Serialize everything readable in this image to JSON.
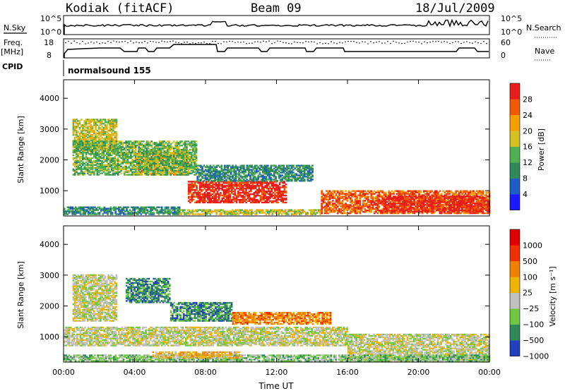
{
  "header": {
    "site": "Kodiak (fitACF)",
    "beam": "Beam 09",
    "date": "18/Jul/2009"
  },
  "summary": {
    "nsky_label": "N.Sky",
    "nsky_ticks": [
      "10^5",
      "10^0"
    ],
    "nsearch_label": "N.Search",
    "nsearch_ticks": [
      "10^5",
      "10^0"
    ],
    "freq_label_line1": "Freq.",
    "freq_label_line2": "[MHz]",
    "freq_ticks": [
      "18",
      "8"
    ],
    "nave_label": "Nave",
    "nave_ticks": [
      "60",
      "0"
    ],
    "cpid_label": "CPID",
    "cpid_value": "normalsound 155"
  },
  "chart_data": [
    {
      "type": "heatmap",
      "title": "",
      "xlabel": "Time UT",
      "ylabel": "Slant Range [km]",
      "xlim": [
        0,
        24
      ],
      "ylim": [
        180,
        4600
      ],
      "x_ticks": [
        "00:00",
        "04:00",
        "08:00",
        "12:00",
        "16:00",
        "20:00",
        "00:00"
      ],
      "y_ticks": [
        "1000",
        "2000",
        "3000",
        "4000"
      ],
      "colorbar_label": "Power [dB]",
      "colorbar_ticks": [
        "4",
        "8",
        "12",
        "16",
        "20",
        "24",
        "28"
      ],
      "colorbar_range": [
        0,
        32
      ],
      "colors": [
        "#1a1aff",
        "#1e5cc8",
        "#2e8b57",
        "#4caf50",
        "#d4c020",
        "#f5a000",
        "#f05a00",
        "#e61e1e"
      ],
      "regions": [
        {
          "t0": 0.0,
          "t1": 6.5,
          "r0": 220,
          "r1": 480,
          "level": 2
        },
        {
          "t0": 6.5,
          "t1": 14.5,
          "r0": 220,
          "r1": 400,
          "level": 4
        },
        {
          "t0": 14.5,
          "t1": 24.0,
          "r0": 250,
          "r1": 1000,
          "level": 6
        },
        {
          "t0": 18.0,
          "t1": 24.0,
          "r0": 300,
          "r1": 800,
          "level": 7
        },
        {
          "t0": 7.0,
          "t1": 12.5,
          "r0": 600,
          "r1": 1300,
          "level": 7
        },
        {
          "t0": 4.0,
          "t1": 7.0,
          "r0": 1500,
          "r1": 2300,
          "level": 5
        },
        {
          "t0": 0.5,
          "t1": 3.0,
          "r0": 2300,
          "r1": 3300,
          "level": 4
        },
        {
          "t0": 7.5,
          "t1": 14.0,
          "r0": 1300,
          "r1": 1800,
          "level": 2
        },
        {
          "t0": 0.5,
          "t1": 7.5,
          "r0": 1500,
          "r1": 2600,
          "level": 3
        }
      ]
    },
    {
      "type": "heatmap",
      "title": "",
      "xlabel": "Time UT",
      "ylabel": "Slant Range [km]",
      "xlim": [
        0,
        24
      ],
      "ylim": [
        180,
        4600
      ],
      "x_ticks": [
        "00:00",
        "04:00",
        "08:00",
        "12:00",
        "16:00",
        "20:00",
        "00:00"
      ],
      "y_ticks": [
        "1000",
        "2000",
        "3000",
        "4000"
      ],
      "colorbar_label": "Velocity [m s⁻¹]",
      "colorbar_ticks": [
        "1000",
        "500",
        "100",
        "25",
        "−25",
        "−100",
        "−500",
        "−1000"
      ],
      "colorbar_range": [
        -1000,
        1000
      ],
      "colors": [
        "#2040c0",
        "#2e8b57",
        "#70c840",
        "#c0c0c0",
        "#f0b400",
        "#f08000",
        "#f03000",
        "#e00000"
      ],
      "regions": [
        {
          "t0": 0.0,
          "t1": 16.0,
          "r0": 700,
          "r1": 1300,
          "level": 3
        },
        {
          "t0": 16.0,
          "t1": 24.0,
          "r0": 200,
          "r1": 1100,
          "level": 3
        },
        {
          "t0": 0.0,
          "t1": 24.0,
          "r0": 200,
          "r1": 420,
          "level": 2
        },
        {
          "t0": 6.0,
          "t1": 9.5,
          "r0": 1500,
          "r1": 2100,
          "level": 1
        },
        {
          "t0": 3.5,
          "t1": 6.0,
          "r0": 2100,
          "r1": 2900,
          "level": 1
        },
        {
          "t0": 9.5,
          "t1": 15.0,
          "r0": 1400,
          "r1": 1800,
          "level": 5
        },
        {
          "t0": 0.5,
          "t1": 3.0,
          "r0": 1500,
          "r1": 3000,
          "level": 3
        },
        {
          "t0": 5.0,
          "t1": 10.0,
          "r0": 300,
          "r1": 500,
          "level": 4
        }
      ]
    }
  ]
}
